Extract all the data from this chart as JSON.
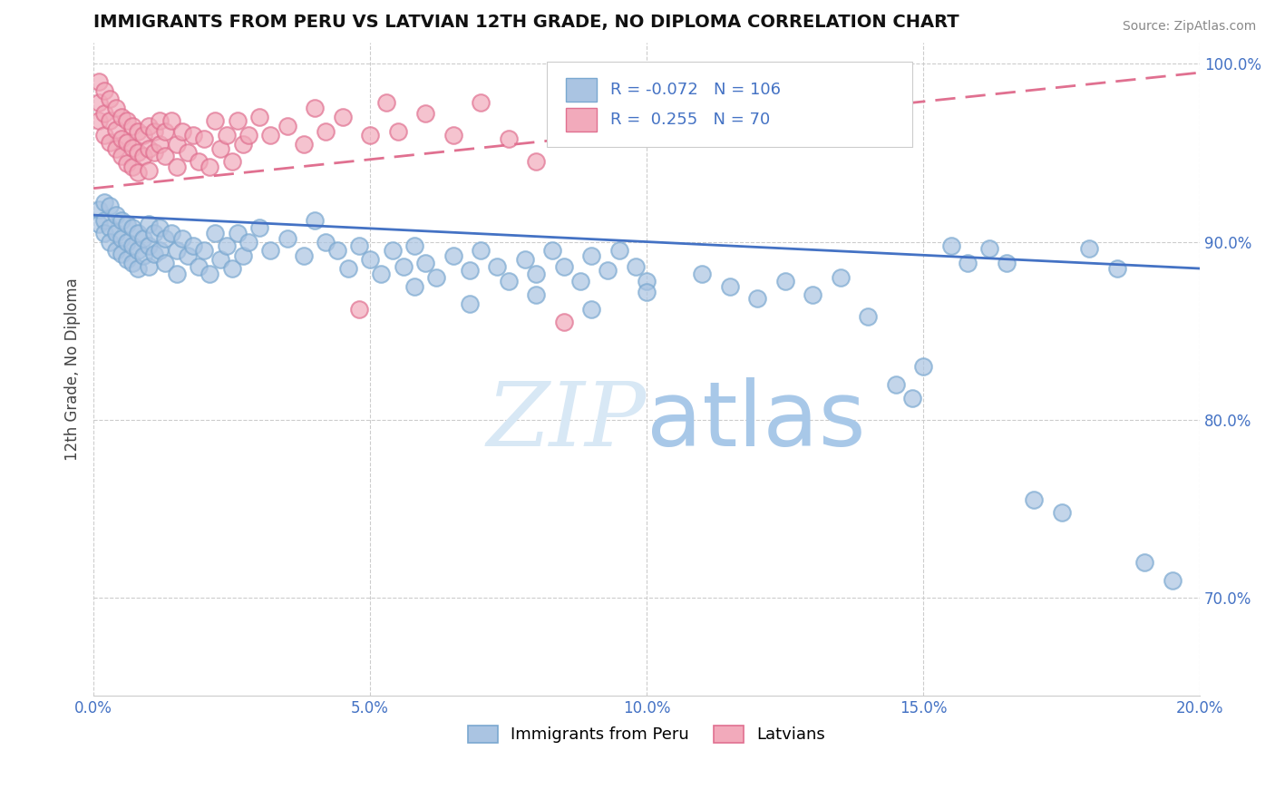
{
  "title": "IMMIGRANTS FROM PERU VS LATVIAN 12TH GRADE, NO DIPLOMA CORRELATION CHART",
  "source_text": "Source: ZipAtlas.com",
  "ylabel": "12th Grade, No Diploma",
  "xlim": [
    0.0,
    0.2
  ],
  "ylim": [
    0.645,
    1.012
  ],
  "xticks": [
    0.0,
    0.05,
    0.1,
    0.15,
    0.2
  ],
  "xtick_labels": [
    "0.0%",
    "5.0%",
    "10.0%",
    "15.0%",
    "20.0%"
  ],
  "yticks": [
    0.7,
    0.8,
    0.9,
    1.0
  ],
  "ytick_labels": [
    "70.0%",
    "80.0%",
    "90.0%",
    "100.0%"
  ],
  "blue_color": "#aac4e2",
  "pink_color": "#f2aabb",
  "blue_edge_color": "#7aa8d0",
  "pink_edge_color": "#e07090",
  "blue_line_color": "#4472c4",
  "pink_line_color": "#e07090",
  "tick_color": "#4472c4",
  "R_blue": -0.072,
  "N_blue": 106,
  "R_pink": 0.255,
  "N_pink": 70,
  "legend_labels": [
    "Immigrants from Peru",
    "Latvians"
  ],
  "watermark_color": "#d0dff0",
  "blue_scatter": [
    [
      0.001,
      0.918
    ],
    [
      0.001,
      0.91
    ],
    [
      0.002,
      0.922
    ],
    [
      0.002,
      0.912
    ],
    [
      0.002,
      0.905
    ],
    [
      0.003,
      0.92
    ],
    [
      0.003,
      0.908
    ],
    [
      0.003,
      0.9
    ],
    [
      0.004,
      0.915
    ],
    [
      0.004,
      0.905
    ],
    [
      0.004,
      0.895
    ],
    [
      0.005,
      0.912
    ],
    [
      0.005,
      0.902
    ],
    [
      0.005,
      0.893
    ],
    [
      0.006,
      0.91
    ],
    [
      0.006,
      0.9
    ],
    [
      0.006,
      0.89
    ],
    [
      0.007,
      0.908
    ],
    [
      0.007,
      0.898
    ],
    [
      0.007,
      0.888
    ],
    [
      0.008,
      0.905
    ],
    [
      0.008,
      0.895
    ],
    [
      0.008,
      0.885
    ],
    [
      0.009,
      0.902
    ],
    [
      0.009,
      0.892
    ],
    [
      0.01,
      0.91
    ],
    [
      0.01,
      0.898
    ],
    [
      0.01,
      0.886
    ],
    [
      0.011,
      0.905
    ],
    [
      0.011,
      0.893
    ],
    [
      0.012,
      0.908
    ],
    [
      0.012,
      0.895
    ],
    [
      0.013,
      0.902
    ],
    [
      0.013,
      0.888
    ],
    [
      0.014,
      0.905
    ],
    [
      0.015,
      0.895
    ],
    [
      0.015,
      0.882
    ],
    [
      0.016,
      0.902
    ],
    [
      0.017,
      0.892
    ],
    [
      0.018,
      0.898
    ],
    [
      0.019,
      0.886
    ],
    [
      0.02,
      0.895
    ],
    [
      0.021,
      0.882
    ],
    [
      0.022,
      0.905
    ],
    [
      0.023,
      0.89
    ],
    [
      0.024,
      0.898
    ],
    [
      0.025,
      0.885
    ],
    [
      0.026,
      0.905
    ],
    [
      0.027,
      0.892
    ],
    [
      0.028,
      0.9
    ],
    [
      0.03,
      0.908
    ],
    [
      0.032,
      0.895
    ],
    [
      0.035,
      0.902
    ],
    [
      0.038,
      0.892
    ],
    [
      0.04,
      0.912
    ],
    [
      0.042,
      0.9
    ],
    [
      0.044,
      0.895
    ],
    [
      0.046,
      0.885
    ],
    [
      0.048,
      0.898
    ],
    [
      0.05,
      0.89
    ],
    [
      0.052,
      0.882
    ],
    [
      0.054,
      0.895
    ],
    [
      0.056,
      0.886
    ],
    [
      0.058,
      0.898
    ],
    [
      0.06,
      0.888
    ],
    [
      0.062,
      0.88
    ],
    [
      0.065,
      0.892
    ],
    [
      0.068,
      0.884
    ],
    [
      0.07,
      0.895
    ],
    [
      0.073,
      0.886
    ],
    [
      0.075,
      0.878
    ],
    [
      0.078,
      0.89
    ],
    [
      0.08,
      0.882
    ],
    [
      0.083,
      0.895
    ],
    [
      0.085,
      0.886
    ],
    [
      0.088,
      0.878
    ],
    [
      0.09,
      0.892
    ],
    [
      0.093,
      0.884
    ],
    [
      0.095,
      0.895
    ],
    [
      0.098,
      0.886
    ],
    [
      0.1,
      0.878
    ],
    [
      0.058,
      0.875
    ],
    [
      0.068,
      0.865
    ],
    [
      0.08,
      0.87
    ],
    [
      0.09,
      0.862
    ],
    [
      0.1,
      0.872
    ],
    [
      0.11,
      0.882
    ],
    [
      0.115,
      0.875
    ],
    [
      0.12,
      0.868
    ],
    [
      0.125,
      0.878
    ],
    [
      0.13,
      0.87
    ],
    [
      0.135,
      0.88
    ],
    [
      0.14,
      0.858
    ],
    [
      0.145,
      0.82
    ],
    [
      0.148,
      0.812
    ],
    [
      0.15,
      0.83
    ],
    [
      0.155,
      0.898
    ],
    [
      0.158,
      0.888
    ],
    [
      0.162,
      0.896
    ],
    [
      0.165,
      0.888
    ],
    [
      0.17,
      0.755
    ],
    [
      0.175,
      0.748
    ],
    [
      0.18,
      0.896
    ],
    [
      0.185,
      0.885
    ],
    [
      0.19,
      0.72
    ],
    [
      0.195,
      0.71
    ]
  ],
  "pink_scatter": [
    [
      0.001,
      0.99
    ],
    [
      0.001,
      0.978
    ],
    [
      0.001,
      0.968
    ],
    [
      0.002,
      0.985
    ],
    [
      0.002,
      0.972
    ],
    [
      0.002,
      0.96
    ],
    [
      0.003,
      0.98
    ],
    [
      0.003,
      0.968
    ],
    [
      0.003,
      0.956
    ],
    [
      0.004,
      0.975
    ],
    [
      0.004,
      0.963
    ],
    [
      0.004,
      0.952
    ],
    [
      0.005,
      0.97
    ],
    [
      0.005,
      0.958
    ],
    [
      0.005,
      0.948
    ],
    [
      0.006,
      0.968
    ],
    [
      0.006,
      0.956
    ],
    [
      0.006,
      0.944
    ],
    [
      0.007,
      0.965
    ],
    [
      0.007,
      0.953
    ],
    [
      0.007,
      0.942
    ],
    [
      0.008,
      0.962
    ],
    [
      0.008,
      0.95
    ],
    [
      0.008,
      0.939
    ],
    [
      0.009,
      0.96
    ],
    [
      0.009,
      0.948
    ],
    [
      0.01,
      0.965
    ],
    [
      0.01,
      0.952
    ],
    [
      0.01,
      0.94
    ],
    [
      0.011,
      0.962
    ],
    [
      0.011,
      0.95
    ],
    [
      0.012,
      0.968
    ],
    [
      0.012,
      0.955
    ],
    [
      0.013,
      0.962
    ],
    [
      0.013,
      0.948
    ],
    [
      0.014,
      0.968
    ],
    [
      0.015,
      0.955
    ],
    [
      0.015,
      0.942
    ],
    [
      0.016,
      0.962
    ],
    [
      0.017,
      0.95
    ],
    [
      0.018,
      0.96
    ],
    [
      0.019,
      0.945
    ],
    [
      0.02,
      0.958
    ],
    [
      0.021,
      0.942
    ],
    [
      0.022,
      0.968
    ],
    [
      0.023,
      0.952
    ],
    [
      0.024,
      0.96
    ],
    [
      0.025,
      0.945
    ],
    [
      0.026,
      0.968
    ],
    [
      0.027,
      0.955
    ],
    [
      0.028,
      0.96
    ],
    [
      0.03,
      0.97
    ],
    [
      0.032,
      0.96
    ],
    [
      0.035,
      0.965
    ],
    [
      0.038,
      0.955
    ],
    [
      0.04,
      0.975
    ],
    [
      0.042,
      0.962
    ],
    [
      0.045,
      0.97
    ],
    [
      0.05,
      0.96
    ],
    [
      0.053,
      0.978
    ],
    [
      0.055,
      0.962
    ],
    [
      0.06,
      0.972
    ],
    [
      0.065,
      0.96
    ],
    [
      0.07,
      0.978
    ],
    [
      0.075,
      0.958
    ],
    [
      0.08,
      0.945
    ],
    [
      0.085,
      0.855
    ],
    [
      0.088,
      0.972
    ],
    [
      0.092,
      0.962
    ],
    [
      0.048,
      0.862
    ]
  ]
}
